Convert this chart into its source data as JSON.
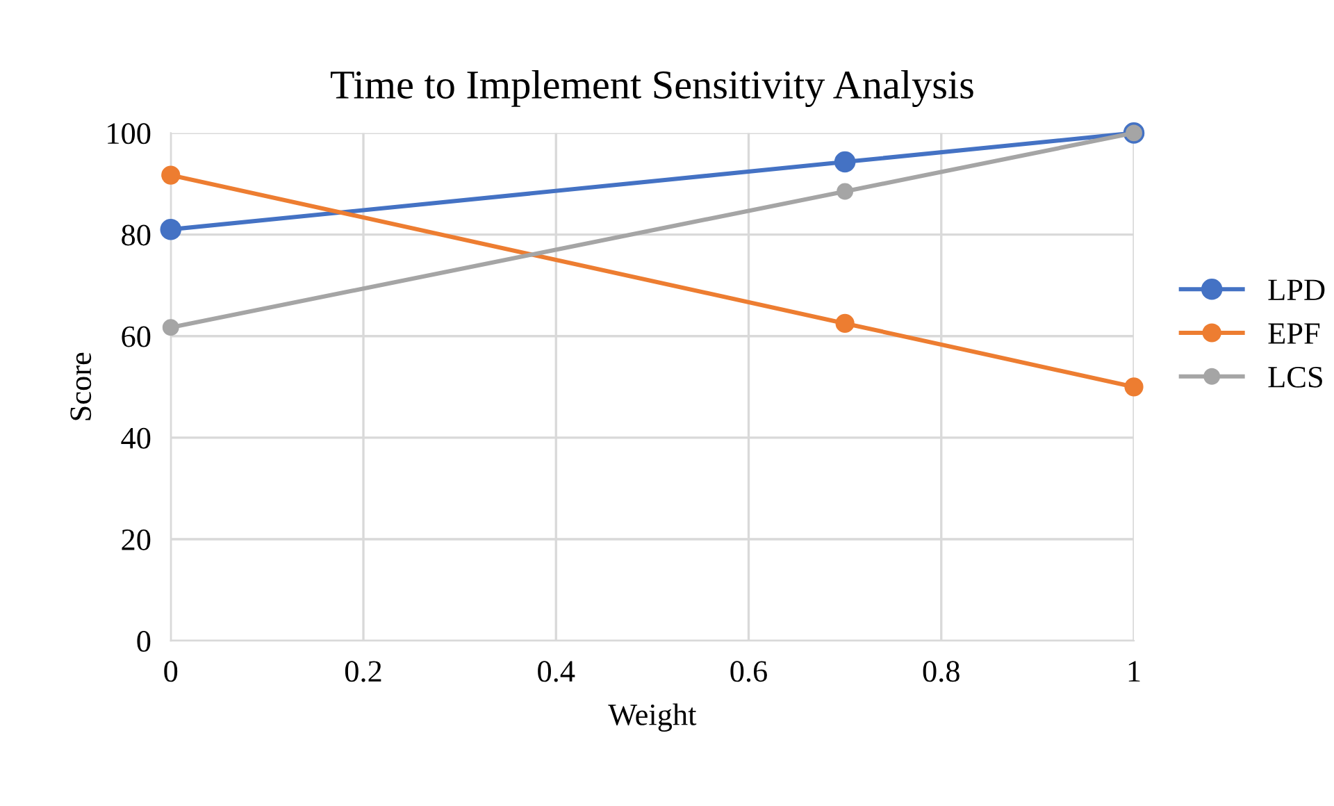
{
  "chart_data": {
    "type": "line",
    "title": "Time to Implement Sensitivity Analysis",
    "xlabel": "Weight",
    "ylabel": "Score",
    "x": [
      0,
      0.7,
      1
    ],
    "series": [
      {
        "name": "LPD",
        "color": "#4472c4",
        "values": [
          81,
          94.3,
          100
        ]
      },
      {
        "name": "EPF",
        "color": "#ed7d31",
        "values": [
          91.7,
          62.5,
          50
        ]
      },
      {
        "name": "LCS",
        "color": "#a5a5a5",
        "values": [
          61.7,
          88.5,
          100
        ]
      }
    ],
    "xlim": [
      0,
      1
    ],
    "xticks": [
      0,
      0.2,
      0.4,
      0.6,
      0.8,
      1
    ],
    "ylim": [
      0,
      100
    ],
    "yticks": [
      0,
      20,
      40,
      60,
      80,
      100
    ],
    "grid": true,
    "legend": "right",
    "marker": "circle",
    "line_style": "solid"
  }
}
